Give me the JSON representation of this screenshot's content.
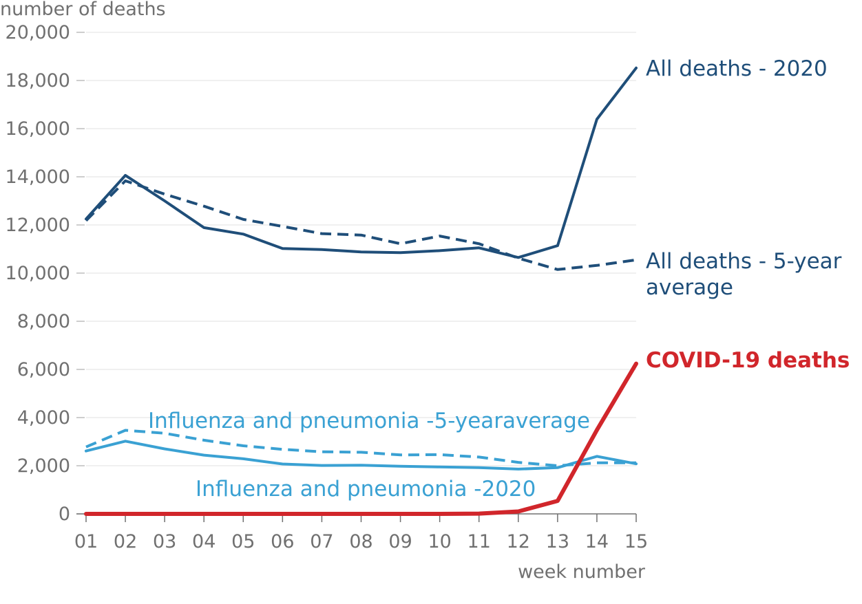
{
  "chart_data": {
    "type": "line",
    "title": "",
    "ylabel": "number of deaths",
    "xlabel": "week number",
    "ylim": [
      0,
      20000
    ],
    "yticks": [
      0,
      2000,
      4000,
      6000,
      8000,
      10000,
      12000,
      14000,
      16000,
      18000,
      20000
    ],
    "ytick_labels": [
      "0",
      "2,000",
      "4,000",
      "6,000",
      "8,000",
      "10,000",
      "12,000",
      "14,000",
      "16,000",
      "18,000",
      "20,000"
    ],
    "grid": true,
    "x": [
      "01",
      "02",
      "03",
      "04",
      "05",
      "06",
      "07",
      "08",
      "09",
      "10",
      "11",
      "12",
      "13",
      "14",
      "15"
    ],
    "series": [
      {
        "name": "All deaths - 2020",
        "label_lines": [
          "All deaths - 2020"
        ],
        "color": "#1f4e79",
        "style": "solid",
        "values": [
          12250,
          14060,
          13000,
          11890,
          11620,
          11020,
          10980,
          10880,
          10850,
          10930,
          11050,
          10650,
          11140,
          16390,
          18520
        ]
      },
      {
        "name": "All deaths - 5-year average",
        "label_lines": [
          "All deaths - 5-year",
          "average"
        ],
        "color": "#1f4e79",
        "style": "dashed",
        "values": [
          12180,
          13830,
          13280,
          12780,
          12230,
          11940,
          11640,
          11580,
          11220,
          11540,
          11220,
          10620,
          10150,
          10320,
          10550
        ]
      },
      {
        "name": "Influenza and pneumonia -5-yearaverage",
        "label_lines": [
          "Influenza and pneumonia -5-yearaverage"
        ],
        "color": "#3aa1d3",
        "style": "dashed",
        "values": [
          2780,
          3470,
          3350,
          3060,
          2830,
          2680,
          2580,
          2560,
          2450,
          2460,
          2360,
          2140,
          2000,
          2120,
          2120
        ]
      },
      {
        "name": "Influenza and pneumonia -2020",
        "label_lines": [
          "Influenza and pneumonia -2020"
        ],
        "color": "#3aa1d3",
        "style": "solid",
        "values": [
          2610,
          3020,
          2700,
          2440,
          2290,
          2070,
          2010,
          2020,
          1980,
          1950,
          1920,
          1860,
          1920,
          2390,
          2080
        ]
      },
      {
        "name": "COVID-19 deaths",
        "label_lines": [
          "COVID-19 deaths"
        ],
        "color": "#d1262b",
        "style": "solid-bold",
        "values": [
          0,
          0,
          0,
          0,
          0,
          0,
          0,
          0,
          0,
          0,
          10,
          100,
          540,
          3480,
          6240
        ]
      }
    ]
  }
}
